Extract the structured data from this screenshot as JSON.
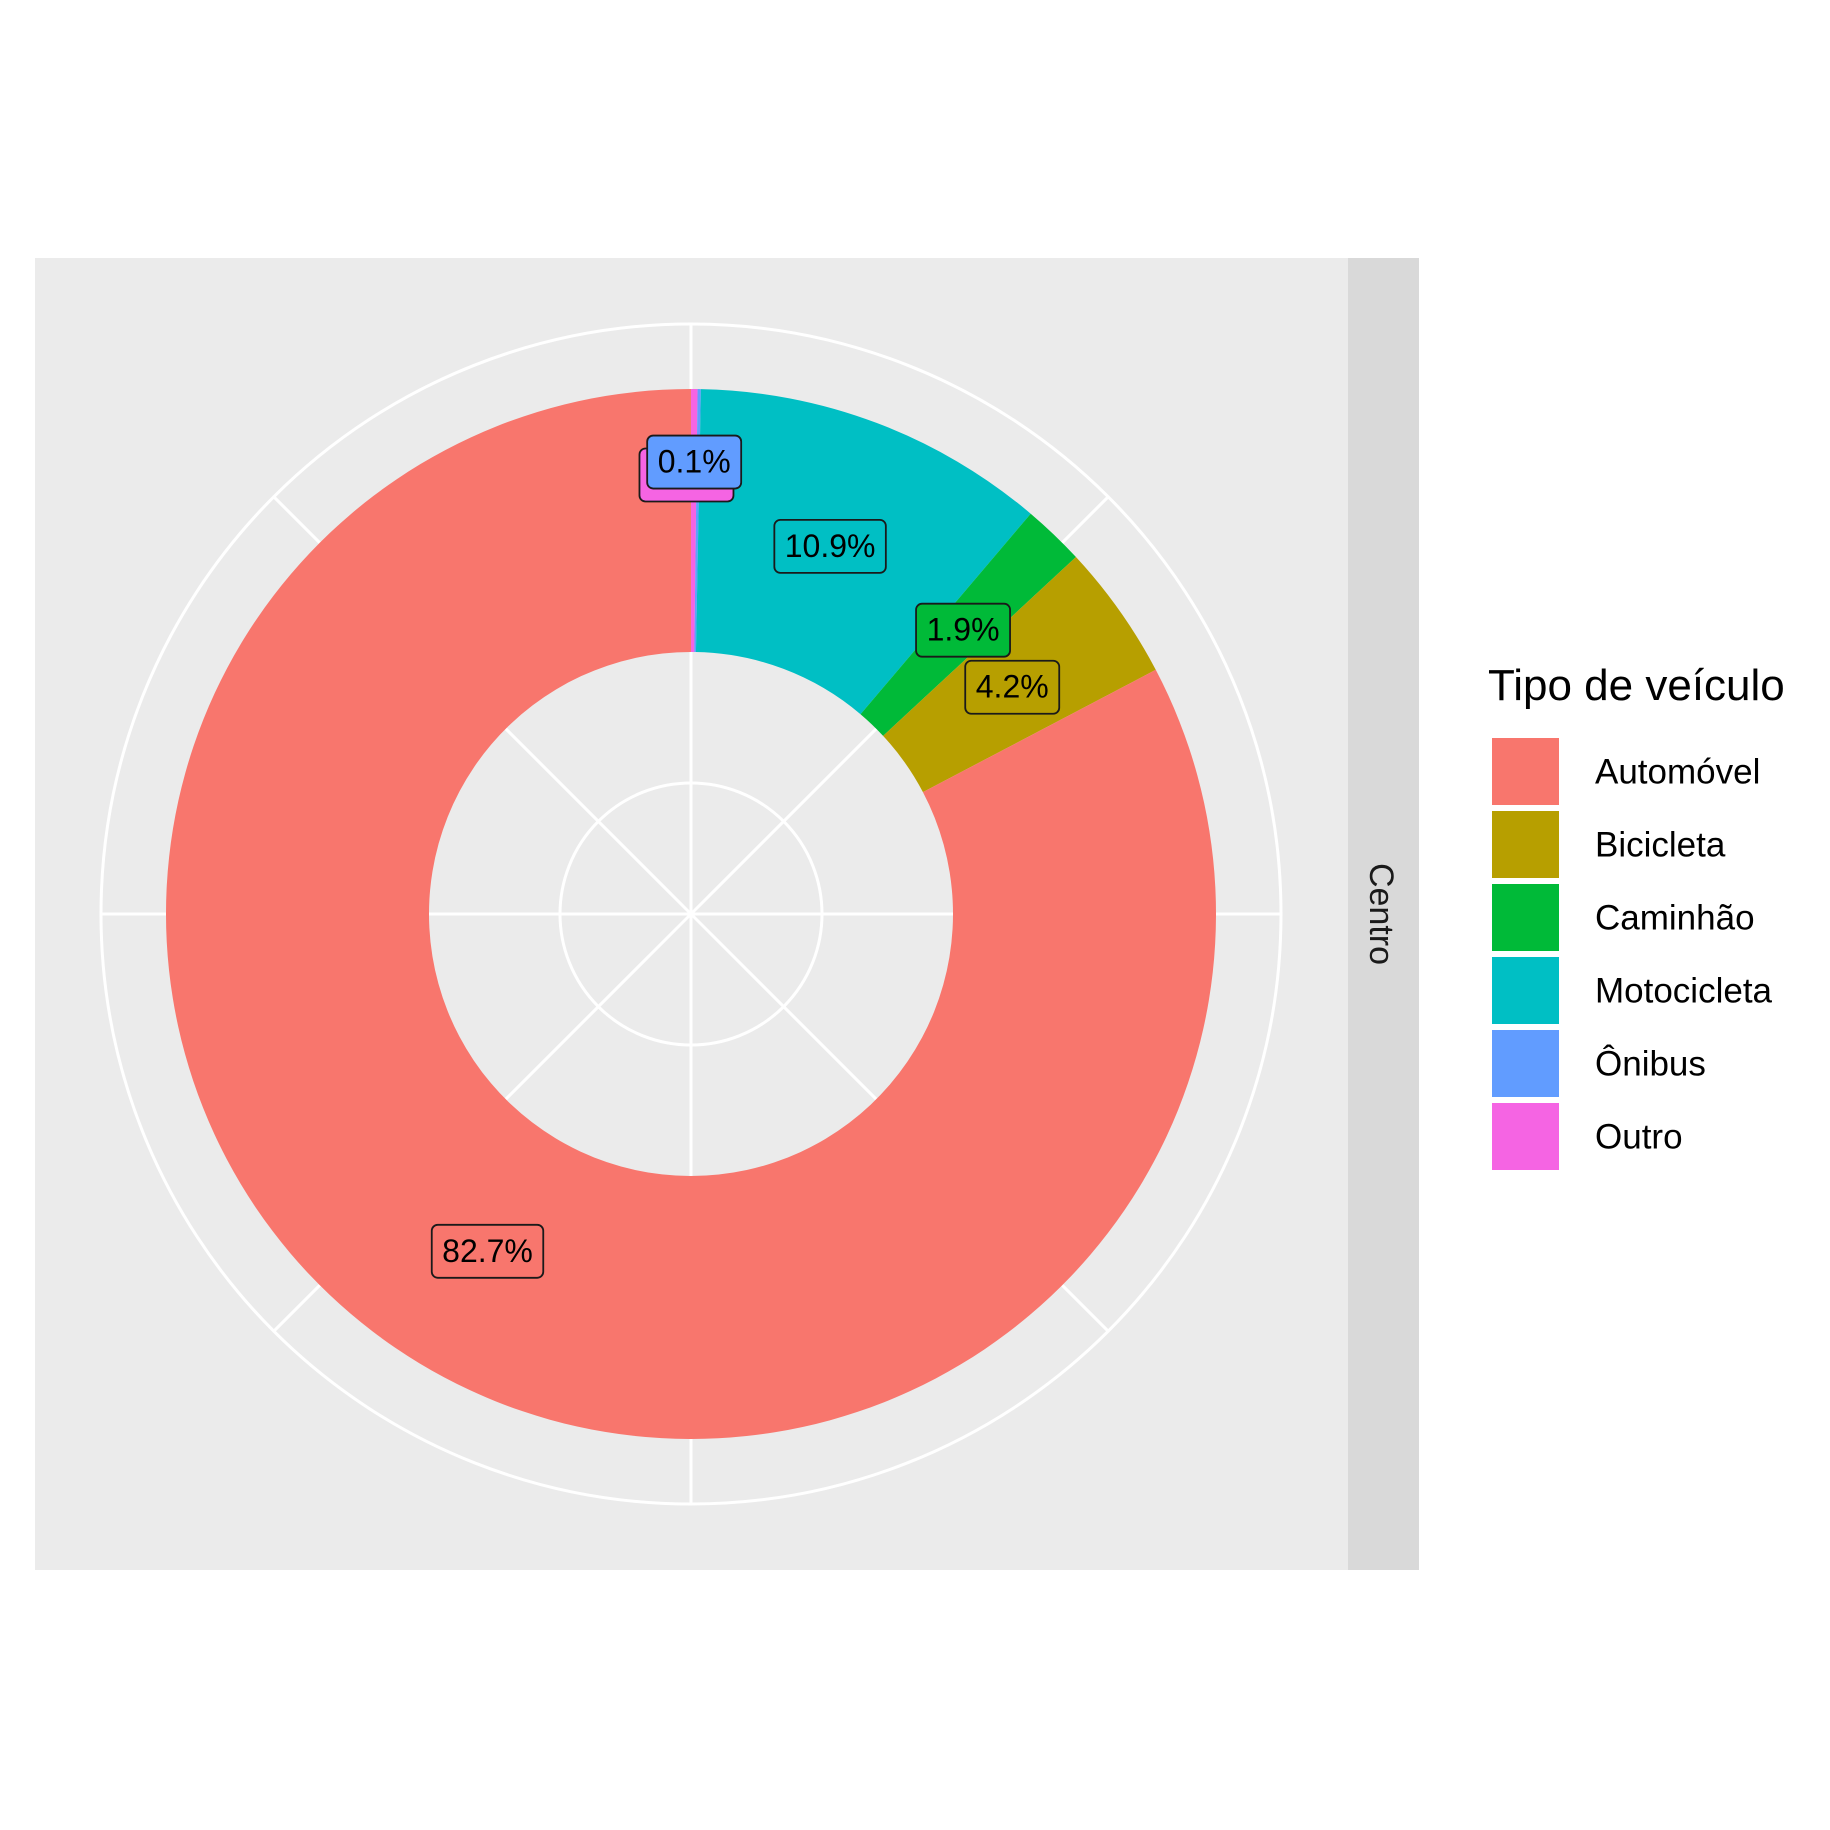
{
  "chart_data": {
    "type": "pie",
    "variant": "donut",
    "facet_label": "Centro",
    "legend": {
      "title": "Tipo de veículo",
      "position": "right"
    },
    "slices": [
      {
        "name": "Automóvel",
        "value": 82.7,
        "label": "82.7%",
        "color": "#F8766D"
      },
      {
        "name": "Bicicleta",
        "value": 4.2,
        "label": "4.2%",
        "color": "#B79F00"
      },
      {
        "name": "Caminhão",
        "value": 1.9,
        "label": "1.9%",
        "color": "#00BA38"
      },
      {
        "name": "Motocicleta",
        "value": 10.9,
        "label": "10.9%",
        "color": "#00BFC4"
      },
      {
        "name": "Ônibus",
        "value": 0.1,
        "label": "0.1%",
        "color": "#619CFF"
      },
      {
        "name": "Outro",
        "value": 0.2,
        "label": "0.2%",
        "color": "#F564E3"
      }
    ],
    "panel_background": "#EBEBEB",
    "strip_background": "#D9D9D9",
    "grid": true
  }
}
